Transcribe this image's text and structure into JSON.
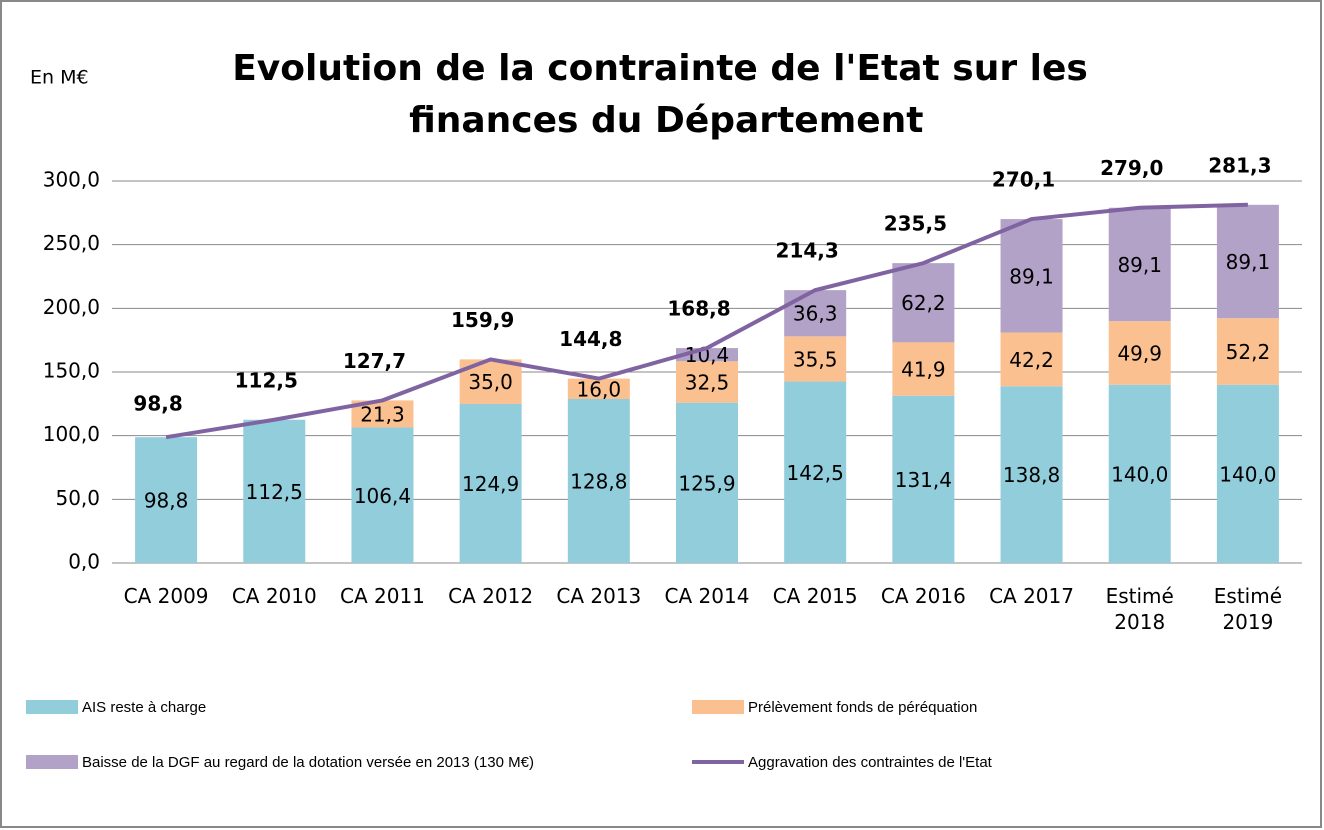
{
  "chart_data": {
    "type": "stacked-bar-line",
    "title": "Evolution de la contrainte de l'Etat sur les finances du Département",
    "y_label": "En M€",
    "categories": [
      "CA 2009",
      "CA 2010",
      "CA 2011",
      "CA 2012",
      "CA 2013",
      "CA 2014",
      "CA 2015",
      "CA 2016",
      "CA 2017",
      "Estimé 2018",
      "Estimé 2019"
    ],
    "series": [
      {
        "name": "AIS reste à charge",
        "kind": "bar",
        "color": "#92cddc",
        "values": [
          98.8,
          112.5,
          106.4,
          124.9,
          128.8,
          125.9,
          142.5,
          131.4,
          138.8,
          140.0,
          140.0
        ],
        "value_labels": [
          "98,8",
          "112,5",
          "106,4",
          "124,9",
          "128,8",
          "125,9",
          "142,5",
          "131,4",
          "138,8",
          "140,0",
          "140,0"
        ]
      },
      {
        "name": "Prélèvement fonds de péréquation",
        "kind": "bar",
        "color": "#fac090",
        "values": [
          null,
          null,
          21.3,
          35.0,
          16.0,
          32.5,
          35.5,
          41.9,
          42.2,
          49.9,
          52.2
        ],
        "value_labels": [
          null,
          null,
          "21,3",
          "35,0",
          "16,0",
          "32,5",
          "35,5",
          "41,9",
          "42,2",
          "49,9",
          "52,2"
        ]
      },
      {
        "name": "Baisse de la DGF au regard de la dotation  versée en 2013 (130 M€)",
        "kind": "bar",
        "color": "#b3a2c7",
        "values": [
          null,
          null,
          null,
          null,
          null,
          10.4,
          36.3,
          62.2,
          89.1,
          89.1,
          89.1
        ],
        "value_labels": [
          null,
          null,
          null,
          null,
          null,
          "10,4",
          "36,3",
          "62,2",
          "89,1",
          "89,1",
          "89,1"
        ]
      },
      {
        "name": "Aggravation des contraintes de l'Etat",
        "kind": "line",
        "color": "#8064a2",
        "values": [
          98.8,
          112.5,
          127.7,
          159.9,
          144.8,
          168.8,
          214.3,
          235.5,
          270.1,
          279.0,
          281.3
        ],
        "value_labels": [
          "98,8",
          "112,5",
          "127,7",
          "159,9",
          "144,8",
          "168,8",
          "214,3",
          "235,5",
          "270,1",
          "279,0",
          "281,3"
        ]
      }
    ],
    "ylim": [
      0,
      300
    ],
    "yticks": [
      {
        "value": 0,
        "label": "0,0"
      },
      {
        "value": 50,
        "label": "50,0"
      },
      {
        "value": 100,
        "label": "100,0"
      },
      {
        "value": 150,
        "label": "150,0"
      },
      {
        "value": 200,
        "label": "200,0"
      },
      {
        "value": 250,
        "label": "250,0"
      },
      {
        "value": 300,
        "label": "300,0"
      }
    ],
    "grid": true
  }
}
